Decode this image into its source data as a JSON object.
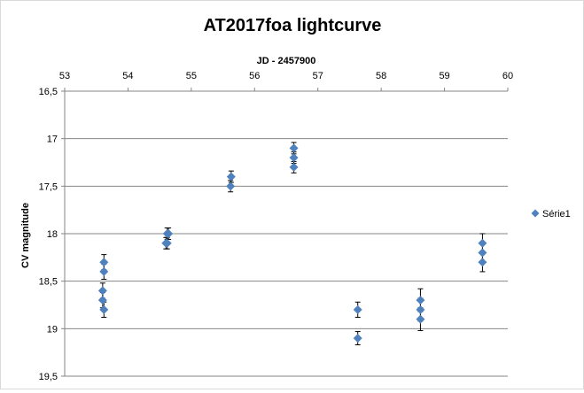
{
  "chart_data": {
    "type": "scatter",
    "title": "AT2017foa lightcurve",
    "xlabel": "JD - 2457900",
    "ylabel": "CV magnitude",
    "xlim": [
      53,
      60
    ],
    "ylim": [
      16.5,
      19.5
    ],
    "y_inverted": true,
    "x_axis_position": "top",
    "x_ticks": [
      "53",
      "54",
      "55",
      "56",
      "57",
      "58",
      "59",
      "60"
    ],
    "y_ticks": [
      "16,5",
      "17",
      "17,5",
      "18",
      "18,5",
      "19",
      "19,5"
    ],
    "grid": "horizontal",
    "legend_position": "right",
    "marker_color": "#4f81bd",
    "series": [
      {
        "name": "Série1",
        "points": [
          {
            "x": 53.62,
            "y": 18.3,
            "err": 0.08
          },
          {
            "x": 53.62,
            "y": 18.4,
            "err": 0.08
          },
          {
            "x": 53.6,
            "y": 18.6,
            "err": 0.08
          },
          {
            "x": 53.6,
            "y": 18.7,
            "err": 0.08
          },
          {
            "x": 53.62,
            "y": 18.8,
            "err": 0.08
          },
          {
            "x": 54.62,
            "y": 18.0,
            "err": 0.06
          },
          {
            "x": 54.6,
            "y": 18.1,
            "err": 0.06
          },
          {
            "x": 54.64,
            "y": 18.0,
            "err": 0.06
          },
          {
            "x": 54.62,
            "y": 18.1,
            "err": 0.06
          },
          {
            "x": 55.63,
            "y": 17.4,
            "err": 0.06
          },
          {
            "x": 55.62,
            "y": 17.5,
            "err": 0.06
          },
          {
            "x": 56.62,
            "y": 17.1,
            "err": 0.06
          },
          {
            "x": 56.62,
            "y": 17.2,
            "err": 0.06
          },
          {
            "x": 56.62,
            "y": 17.3,
            "err": 0.06
          },
          {
            "x": 57.63,
            "y": 18.8,
            "err": 0.08
          },
          {
            "x": 57.63,
            "y": 19.1,
            "err": 0.07
          },
          {
            "x": 58.62,
            "y": 18.7,
            "err": 0.12
          },
          {
            "x": 58.62,
            "y": 18.8,
            "err": 0.12
          },
          {
            "x": 58.62,
            "y": 18.9,
            "err": 0.12
          },
          {
            "x": 59.6,
            "y": 18.1,
            "err": 0.1
          },
          {
            "x": 59.6,
            "y": 18.2,
            "err": 0.1
          },
          {
            "x": 59.6,
            "y": 18.3,
            "err": 0.1
          }
        ]
      }
    ]
  }
}
